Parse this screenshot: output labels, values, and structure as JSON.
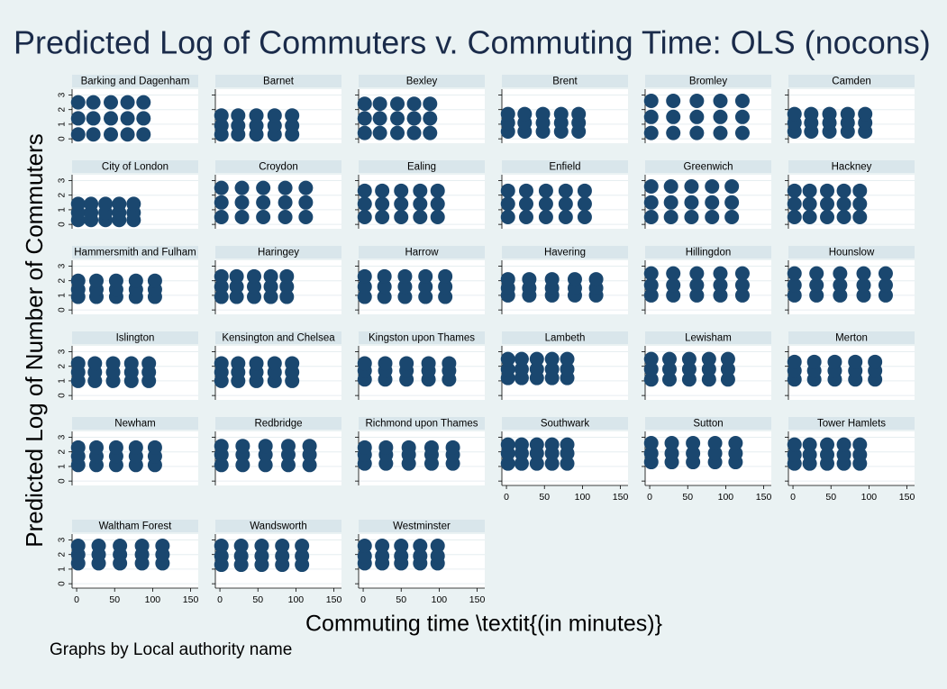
{
  "chart_data": {
    "type": "scatter",
    "title": "Predicted Log of Commuters v. Commuting Time: OLS (nocons)",
    "xlabel": "Commuting time \\textit{(in minutes)}",
    "ylabel": "Predicted Log of Number of Commuters",
    "note": "Graphs by Local authority name",
    "color": "#1a476f",
    "xlim": [
      -6,
      160
    ],
    "ylim": [
      -0.3,
      3.4
    ],
    "xticks": [
      0,
      50,
      100,
      150
    ],
    "yticks": [
      0,
      1,
      2,
      3
    ],
    "grid": true,
    "panels": [
      {
        "name": "Barking and Dagenham",
        "x": [
          2,
          22,
          45,
          67,
          88,
          2,
          22,
          45,
          67,
          88,
          2,
          22,
          45,
          67,
          88
        ],
        "y": [
          0.3,
          0.3,
          0.3,
          0.3,
          0.3,
          1.4,
          1.4,
          1.4,
          1.4,
          1.4,
          2.5,
          2.5,
          2.5,
          2.5,
          2.5
        ]
      },
      {
        "name": "Barnet",
        "x": [
          2,
          24,
          48,
          72,
          95,
          2,
          24,
          48,
          72,
          95,
          2,
          24,
          48,
          72,
          95
        ],
        "y": [
          0.3,
          0.3,
          0.3,
          0.3,
          0.3,
          0.9,
          0.9,
          0.9,
          0.9,
          0.9,
          1.6,
          1.6,
          1.6,
          1.6,
          1.6
        ]
      },
      {
        "name": "Bexley",
        "x": [
          2,
          22,
          45,
          67,
          88,
          2,
          22,
          45,
          67,
          88,
          2,
          22,
          45,
          67,
          88
        ],
        "y": [
          0.4,
          0.4,
          0.4,
          0.4,
          0.4,
          1.4,
          1.4,
          1.4,
          1.4,
          1.4,
          2.4,
          2.4,
          2.4,
          2.4,
          2.4
        ]
      },
      {
        "name": "Brent",
        "x": [
          2,
          24,
          48,
          72,
          95,
          2,
          24,
          48,
          72,
          95,
          2,
          24,
          48,
          72,
          95
        ],
        "y": [
          0.5,
          0.5,
          0.5,
          0.5,
          0.5,
          1.1,
          1.1,
          1.1,
          1.1,
          1.1,
          1.7,
          1.7,
          1.7,
          1.7,
          1.7
        ]
      },
      {
        "name": "Bromley",
        "x": [
          2,
          31,
          62,
          93,
          122,
          2,
          31,
          62,
          93,
          122,
          2,
          31,
          62,
          93,
          122
        ],
        "y": [
          0.4,
          0.4,
          0.4,
          0.4,
          0.4,
          1.5,
          1.5,
          1.5,
          1.5,
          1.5,
          2.6,
          2.6,
          2.6,
          2.6,
          2.6
        ]
      },
      {
        "name": "Camden",
        "x": [
          2,
          24,
          48,
          72,
          95,
          2,
          24,
          48,
          72,
          95,
          2,
          24,
          48,
          72,
          95
        ],
        "y": [
          0.5,
          0.5,
          0.5,
          0.5,
          0.5,
          1.1,
          1.1,
          1.1,
          1.1,
          1.1,
          1.7,
          1.7,
          1.7,
          1.7,
          1.7
        ]
      },
      {
        "name": "City of London",
        "x": [
          2,
          19,
          38,
          56,
          75,
          2,
          19,
          38,
          56,
          75,
          2,
          19,
          38,
          56,
          75
        ],
        "y": [
          0.3,
          0.3,
          0.3,
          0.3,
          0.3,
          0.8,
          0.8,
          0.8,
          0.8,
          0.8,
          1.4,
          1.4,
          1.4,
          1.4,
          1.4
        ]
      },
      {
        "name": "Croydon",
        "x": [
          2,
          29,
          57,
          86,
          113,
          2,
          29,
          57,
          86,
          113,
          2,
          29,
          57,
          86,
          113
        ],
        "y": [
          0.5,
          0.5,
          0.5,
          0.5,
          0.5,
          1.5,
          1.5,
          1.5,
          1.5,
          1.5,
          2.5,
          2.5,
          2.5,
          2.5,
          2.5
        ]
      },
      {
        "name": "Ealing",
        "x": [
          2,
          25,
          50,
          75,
          98,
          2,
          25,
          50,
          75,
          98,
          2,
          25,
          50,
          75,
          98
        ],
        "y": [
          0.5,
          0.5,
          0.5,
          0.5,
          0.5,
          1.4,
          1.4,
          1.4,
          1.4,
          1.4,
          2.3,
          2.3,
          2.3,
          2.3,
          2.3
        ]
      },
      {
        "name": "Enfield",
        "x": [
          2,
          26,
          52,
          78,
          103,
          2,
          26,
          52,
          78,
          103,
          2,
          26,
          52,
          78,
          103
        ],
        "y": [
          0.5,
          0.5,
          0.5,
          0.5,
          0.5,
          1.4,
          1.4,
          1.4,
          1.4,
          1.4,
          2.3,
          2.3,
          2.3,
          2.3,
          2.3
        ]
      },
      {
        "name": "Greenwich",
        "x": [
          2,
          28,
          55,
          82,
          108,
          2,
          28,
          55,
          82,
          108,
          2,
          28,
          55,
          82,
          108
        ],
        "y": [
          0.5,
          0.5,
          0.5,
          0.5,
          0.5,
          1.5,
          1.5,
          1.5,
          1.5,
          1.5,
          2.6,
          2.6,
          2.6,
          2.6,
          2.6
        ]
      },
      {
        "name": "Hackney",
        "x": [
          2,
          22,
          45,
          67,
          88,
          2,
          22,
          45,
          67,
          88,
          2,
          22,
          45,
          67,
          88
        ],
        "y": [
          0.5,
          0.5,
          0.5,
          0.5,
          0.5,
          1.4,
          1.4,
          1.4,
          1.4,
          1.4,
          2.3,
          2.3,
          2.3,
          2.3,
          2.3
        ]
      },
      {
        "name": "Hammersmith and Fulham",
        "x": [
          2,
          26,
          52,
          78,
          103,
          2,
          26,
          52,
          78,
          103,
          2,
          26,
          52,
          78,
          103
        ],
        "y": [
          0.9,
          0.9,
          0.9,
          0.9,
          0.9,
          1.4,
          1.4,
          1.4,
          1.4,
          1.4,
          2.0,
          2.0,
          2.0,
          2.0,
          2.0
        ]
      },
      {
        "name": "Haringey",
        "x": [
          2,
          22,
          45,
          67,
          88,
          2,
          22,
          45,
          67,
          88,
          2,
          22,
          45,
          67,
          88
        ],
        "y": [
          0.9,
          0.9,
          0.9,
          0.9,
          0.9,
          1.6,
          1.6,
          1.6,
          1.6,
          1.6,
          2.3,
          2.3,
          2.3,
          2.3,
          2.3
        ]
      },
      {
        "name": "Harrow",
        "x": [
          2,
          28,
          55,
          82,
          108,
          2,
          28,
          55,
          82,
          108,
          2,
          28,
          55,
          82,
          108
        ],
        "y": [
          0.9,
          0.9,
          0.9,
          0.9,
          0.9,
          1.6,
          1.6,
          1.6,
          1.6,
          1.6,
          2.3,
          2.3,
          2.3,
          2.3,
          2.3
        ]
      },
      {
        "name": "Havering",
        "x": [
          2,
          30,
          60,
          90,
          118,
          2,
          30,
          60,
          90,
          118,
          2,
          30,
          60,
          90,
          118
        ],
        "y": [
          1.0,
          1.0,
          1.0,
          1.0,
          1.0,
          1.5,
          1.5,
          1.5,
          1.5,
          1.5,
          2.1,
          2.1,
          2.1,
          2.1,
          2.1
        ]
      },
      {
        "name": "Hillingdon",
        "x": [
          2,
          31,
          62,
          93,
          122,
          2,
          31,
          62,
          93,
          122,
          2,
          31,
          62,
          93,
          122
        ],
        "y": [
          1.0,
          1.0,
          1.0,
          1.0,
          1.0,
          1.7,
          1.7,
          1.7,
          1.7,
          1.7,
          2.5,
          2.5,
          2.5,
          2.5,
          2.5
        ]
      },
      {
        "name": "Hounslow",
        "x": [
          2,
          31,
          62,
          93,
          122,
          2,
          31,
          62,
          93,
          122,
          2,
          31,
          62,
          93,
          122
        ],
        "y": [
          1.0,
          1.0,
          1.0,
          1.0,
          1.0,
          1.7,
          1.7,
          1.7,
          1.7,
          1.7,
          2.5,
          2.5,
          2.5,
          2.5,
          2.5
        ]
      },
      {
        "name": "Islington",
        "x": [
          2,
          24,
          48,
          72,
          95,
          2,
          24,
          48,
          72,
          95,
          2,
          24,
          48,
          72,
          95
        ],
        "y": [
          1.0,
          1.0,
          1.0,
          1.0,
          1.0,
          1.6,
          1.6,
          1.6,
          1.6,
          1.6,
          2.2,
          2.2,
          2.2,
          2.2,
          2.2
        ]
      },
      {
        "name": "Kensington and Chelsea",
        "x": [
          2,
          24,
          48,
          72,
          95,
          2,
          24,
          48,
          72,
          95,
          2,
          24,
          48,
          72,
          95
        ],
        "y": [
          1.0,
          1.0,
          1.0,
          1.0,
          1.0,
          1.6,
          1.6,
          1.6,
          1.6,
          1.6,
          2.2,
          2.2,
          2.2,
          2.2,
          2.2
        ]
      },
      {
        "name": "Kingston upon Thames",
        "x": [
          2,
          29,
          57,
          86,
          113,
          2,
          29,
          57,
          86,
          113,
          2,
          29,
          57,
          86,
          113
        ],
        "y": [
          1.1,
          1.1,
          1.1,
          1.1,
          1.1,
          1.7,
          1.7,
          1.7,
          1.7,
          1.7,
          2.2,
          2.2,
          2.2,
          2.2,
          2.2
        ]
      },
      {
        "name": "Lambeth",
        "x": [
          2,
          20,
          40,
          60,
          80,
          2,
          20,
          40,
          60,
          80,
          2,
          20,
          40,
          60,
          80
        ],
        "y": [
          1.2,
          1.2,
          1.2,
          1.2,
          1.2,
          1.8,
          1.8,
          1.8,
          1.8,
          1.8,
          2.5,
          2.5,
          2.5,
          2.5,
          2.5
        ]
      },
      {
        "name": "Lewisham",
        "x": [
          2,
          26,
          52,
          78,
          103,
          2,
          26,
          52,
          78,
          103,
          2,
          26,
          52,
          78,
          103
        ],
        "y": [
          1.1,
          1.1,
          1.1,
          1.1,
          1.1,
          1.8,
          1.8,
          1.8,
          1.8,
          1.8,
          2.5,
          2.5,
          2.5,
          2.5,
          2.5
        ]
      },
      {
        "name": "Merton",
        "x": [
          2,
          28,
          55,
          82,
          108,
          2,
          28,
          55,
          82,
          108,
          2,
          28,
          55,
          82,
          108
        ],
        "y": [
          1.1,
          1.1,
          1.1,
          1.1,
          1.1,
          1.7,
          1.7,
          1.7,
          1.7,
          1.7,
          2.3,
          2.3,
          2.3,
          2.3,
          2.3
        ]
      },
      {
        "name": "Newham",
        "x": [
          2,
          26,
          52,
          78,
          103,
          2,
          26,
          52,
          78,
          103,
          2,
          26,
          52,
          78,
          103
        ],
        "y": [
          1.1,
          1.1,
          1.1,
          1.1,
          1.1,
          1.7,
          1.7,
          1.7,
          1.7,
          1.7,
          2.3,
          2.3,
          2.3,
          2.3,
          2.3
        ]
      },
      {
        "name": "Redbridge",
        "x": [
          2,
          30,
          60,
          90,
          118,
          2,
          30,
          60,
          90,
          118,
          2,
          30,
          60,
          90,
          118
        ],
        "y": [
          1.1,
          1.1,
          1.1,
          1.1,
          1.1,
          1.8,
          1.8,
          1.8,
          1.8,
          1.8,
          2.4,
          2.4,
          2.4,
          2.4,
          2.4
        ]
      },
      {
        "name": "Richmond upon Thames",
        "x": [
          2,
          30,
          60,
          90,
          118,
          2,
          30,
          60,
          90,
          118,
          2,
          30,
          60,
          90,
          118
        ],
        "y": [
          1.2,
          1.2,
          1.2,
          1.2,
          1.2,
          1.8,
          1.8,
          1.8,
          1.8,
          1.8,
          2.3,
          2.3,
          2.3,
          2.3,
          2.3
        ]
      },
      {
        "name": "Southwark",
        "x": [
          2,
          20,
          40,
          60,
          80,
          2,
          20,
          40,
          60,
          80,
          2,
          20,
          40,
          60,
          80
        ],
        "y": [
          1.2,
          1.2,
          1.2,
          1.2,
          1.2,
          1.9,
          1.9,
          1.9,
          1.9,
          1.9,
          2.5,
          2.5,
          2.5,
          2.5,
          2.5
        ]
      },
      {
        "name": "Sutton",
        "x": [
          2,
          29,
          57,
          86,
          113,
          2,
          29,
          57,
          86,
          113,
          2,
          29,
          57,
          86,
          113
        ],
        "y": [
          1.3,
          1.3,
          1.3,
          1.3,
          1.3,
          1.9,
          1.9,
          1.9,
          1.9,
          1.9,
          2.6,
          2.6,
          2.6,
          2.6,
          2.6
        ]
      },
      {
        "name": "Tower Hamlets",
        "x": [
          2,
          22,
          45,
          67,
          88,
          2,
          22,
          45,
          67,
          88,
          2,
          22,
          45,
          67,
          88
        ],
        "y": [
          1.2,
          1.2,
          1.2,
          1.2,
          1.2,
          1.8,
          1.8,
          1.8,
          1.8,
          1.8,
          2.5,
          2.5,
          2.5,
          2.5,
          2.5
        ]
      },
      {
        "name": "Waltham Forest",
        "x": [
          2,
          29,
          57,
          86,
          113,
          2,
          29,
          57,
          86,
          113,
          2,
          29,
          57,
          86,
          113
        ],
        "y": [
          1.4,
          1.4,
          1.4,
          1.4,
          1.4,
          2.0,
          2.0,
          2.0,
          2.0,
          2.0,
          2.6,
          2.6,
          2.6,
          2.6,
          2.6
        ]
      },
      {
        "name": "Wandsworth",
        "x": [
          2,
          28,
          55,
          82,
          108,
          2,
          28,
          55,
          82,
          108,
          2,
          28,
          55,
          82,
          108
        ],
        "y": [
          1.3,
          1.3,
          1.3,
          1.3,
          1.3,
          1.9,
          1.9,
          1.9,
          1.9,
          1.9,
          2.6,
          2.6,
          2.6,
          2.6,
          2.6
        ]
      },
      {
        "name": "Westminster",
        "x": [
          2,
          25,
          50,
          75,
          98,
          2,
          25,
          50,
          75,
          98,
          2,
          25,
          50,
          75,
          98
        ],
        "y": [
          1.4,
          1.4,
          1.4,
          1.4,
          1.4,
          1.9,
          1.9,
          1.9,
          1.9,
          1.9,
          2.6,
          2.6,
          2.6,
          2.6,
          2.6
        ]
      }
    ]
  }
}
